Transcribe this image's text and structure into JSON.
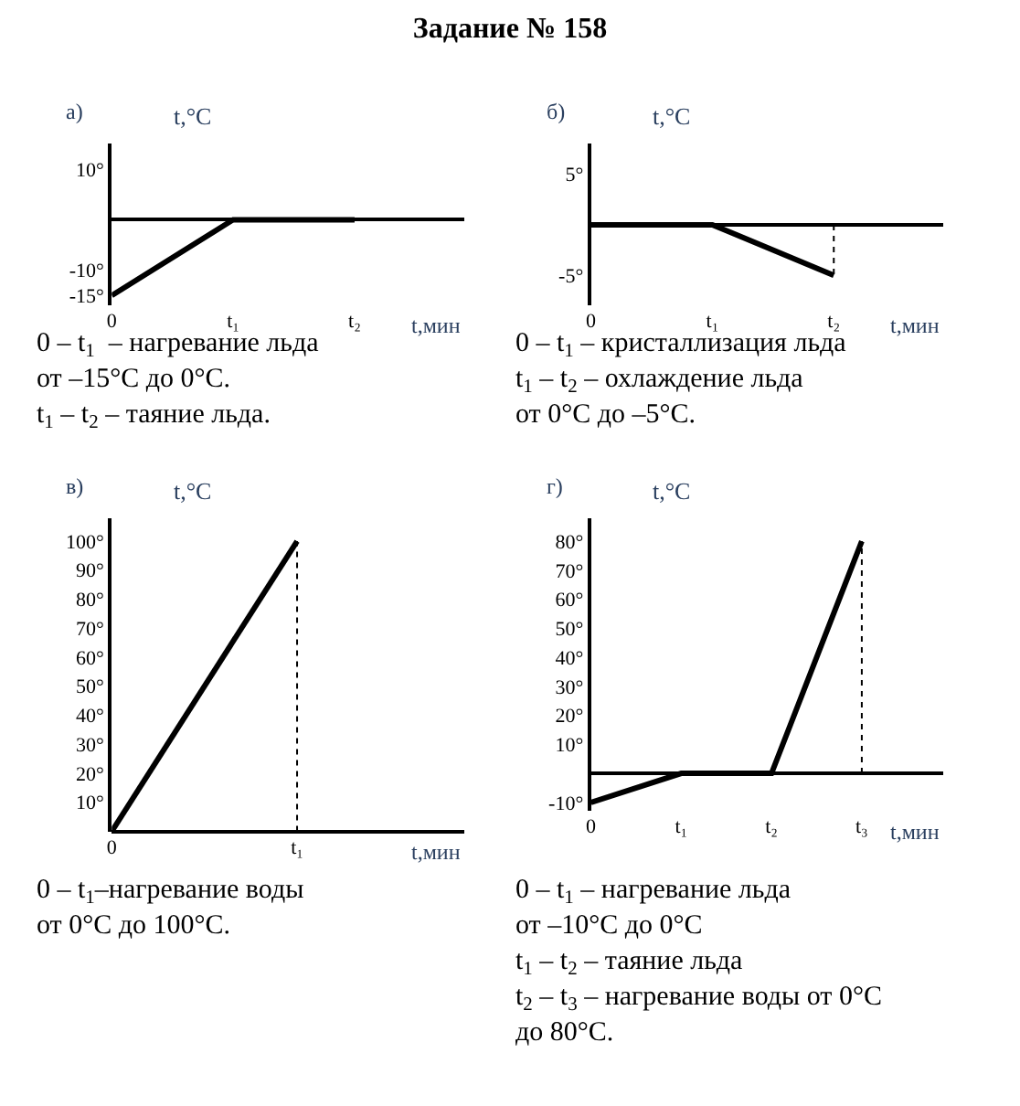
{
  "chart_data": [
    {
      "type": "line",
      "title": "Задание № 158",
      "subtitle": "а)",
      "xlabel": "t,мин",
      "ylabel": "t,°C",
      "categories": [
        "0",
        "t₁",
        "t₂"
      ],
      "values": [
        -15,
        0,
        0
      ],
      "color": "#000000",
      "ylim": [
        -17,
        15
      ],
      "yticks": [
        {
          "value": -15,
          "label": "-15°"
        },
        {
          "value": -10,
          "label": "-10°"
        },
        {
          "value": 10,
          "label": "10°"
        }
      ],
      "annotations": [
        "0 – t$_{1}$  – нагревание льда\nот –15°C до 0°C.\nt$_{1}$ – t$_{2}$ – таяние льда."
      ]
    },
    {
      "type": "line",
      "title": "б)",
      "xlabel": "t,мин",
      "ylabel": "t,°C",
      "categories": [
        "0",
        "t₁",
        "t₂"
      ],
      "values": [
        0,
        0,
        -5
      ],
      "color": "#000000",
      "ylim": [
        -8,
        8
      ],
      "yticks": [
        {
          "value": -5,
          "label": "-5°"
        },
        {
          "value": 5,
          "label": "5°"
        }
      ],
      "ref_lines": [
        {
          "axis": "x",
          "value": "t₂",
          "line_style": "dotted"
        }
      ],
      "annotations": [
        "0 – t$_{1}$ – кристаллизация льда\nt$_{1}$ – t$_{2}$ – охлаждение льда\nот 0°C до –5°C."
      ]
    },
    {
      "type": "line",
      "title": "в)",
      "xlabel": "t,мин",
      "ylabel": "t,°C",
      "categories": [
        "0",
        "t₁"
      ],
      "values": [
        0,
        100
      ],
      "color": "#000000",
      "ylim": [
        0,
        108
      ],
      "yticks": [
        {
          "value": 10,
          "label": "10°"
        },
        {
          "value": 20,
          "label": "20°"
        },
        {
          "value": 30,
          "label": "30°"
        },
        {
          "value": 40,
          "label": "40°"
        },
        {
          "value": 50,
          "label": "50°"
        },
        {
          "value": 60,
          "label": "60°"
        },
        {
          "value": 70,
          "label": "70°"
        },
        {
          "value": 80,
          "label": "80°"
        },
        {
          "value": 90,
          "label": "90°"
        },
        {
          "value": 100,
          "label": "100°"
        }
      ],
      "ref_lines": [
        {
          "axis": "x",
          "value": "t₁",
          "line_style": "dotted"
        }
      ],
      "annotations": [
        "0 – t$_{1}$–нагревание воды\nот 0°C до 100°C."
      ]
    },
    {
      "type": "line",
      "title": "г)",
      "xlabel": "t,мин",
      "ylabel": "t,°C",
      "categories": [
        "0",
        "t₁",
        "t₂",
        "t₃"
      ],
      "values": [
        -10,
        0,
        0,
        80
      ],
      "color": "#000000",
      "ylim": [
        -13,
        88
      ],
      "yticks": [
        {
          "value": -10,
          "label": "-10°"
        },
        {
          "value": 10,
          "label": "10°"
        },
        {
          "value": 20,
          "label": "20°"
        },
        {
          "value": 30,
          "label": "30°"
        },
        {
          "value": 40,
          "label": "40°"
        },
        {
          "value": 50,
          "label": "50°"
        },
        {
          "value": 60,
          "label": "60°"
        },
        {
          "value": 70,
          "label": "70°"
        },
        {
          "value": 80,
          "label": "80°"
        }
      ],
      "ref_lines": [
        {
          "axis": "x",
          "value": "t₃",
          "line_style": "dotted"
        }
      ],
      "annotations": [
        "0 – t$_{1}$ – нагревание льда\nот –10°C до 0°C\nt$_{1}$ – t$_{2}$ – таяние льда\nt$_{2}$ – t$_{3}$ – нагревание воды от 0°C\nдо 80°C."
      ]
    }
  ]
}
